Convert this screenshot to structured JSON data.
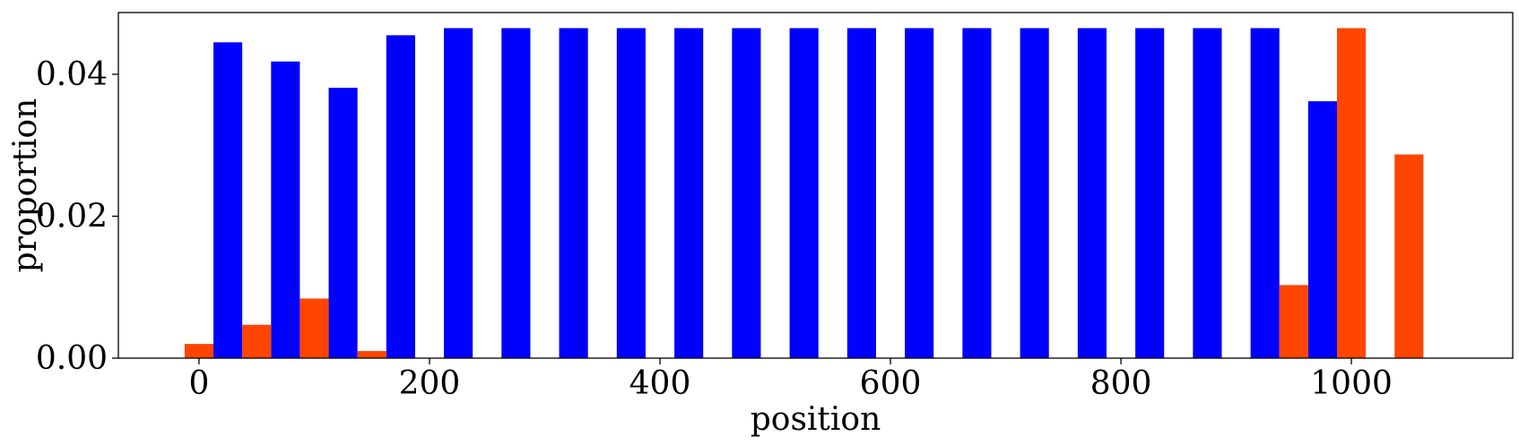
{
  "chart_data": {
    "type": "bar",
    "xlabel": "position",
    "ylabel": "proportion",
    "xlim": [
      -70,
      1140
    ],
    "ylim": [
      0,
      0.0487
    ],
    "bar_width": 25,
    "xticks": [
      0,
      200,
      400,
      600,
      800,
      1000
    ],
    "xtick_labels": [
      "0",
      "200",
      "400",
      "600",
      "800",
      "1000"
    ],
    "yticks": [
      0.0,
      0.02,
      0.04
    ],
    "ytick_labels": [
      "0.00",
      "0.02",
      "0.04"
    ],
    "grid": false,
    "series": [
      {
        "color": "#0000ff",
        "x": [
          25,
          75,
          125,
          175,
          225,
          275,
          325,
          375,
          425,
          475,
          525,
          575,
          625,
          675,
          725,
          775,
          825,
          875,
          925,
          975
        ],
        "values": [
          0.0445,
          0.0418,
          0.0381,
          0.0455,
          0.0465,
          0.0465,
          0.0465,
          0.0465,
          0.0465,
          0.0465,
          0.0465,
          0.0465,
          0.0465,
          0.0465,
          0.0465,
          0.0465,
          0.0465,
          0.0465,
          0.0465,
          0.0362
        ]
      },
      {
        "color": "#ff4500",
        "x": [
          0,
          50,
          100,
          150,
          950,
          1000,
          1050
        ],
        "values": [
          0.002,
          0.0047,
          0.0084,
          0.001,
          0.0103,
          0.0465,
          0.0287
        ]
      }
    ]
  }
}
